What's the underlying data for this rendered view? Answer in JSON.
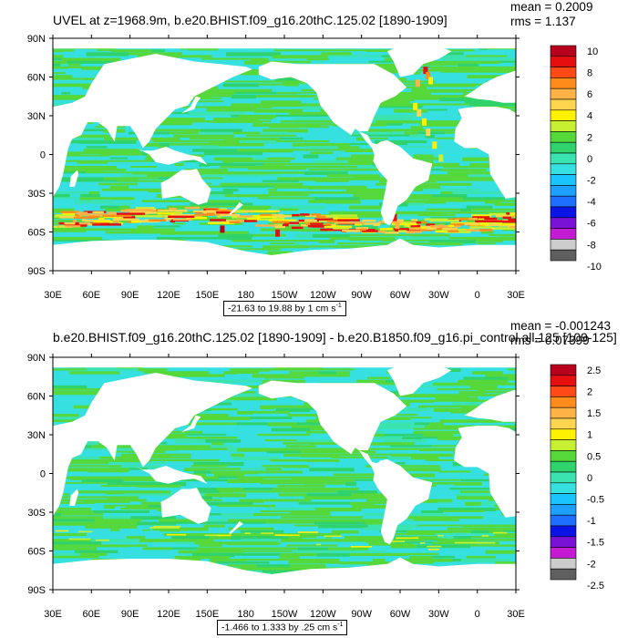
{
  "chart_data": [
    {
      "type": "heatmap",
      "title": "UVEL at z=1968.9m, b.e20.BHIST.f09_g16.20thC.125.02 [1890-1909]",
      "mean_label": "mean = 0.2009",
      "rms_label": "rms = 1.137",
      "range_text": "-21.63 to 19.88 by 1 cm s",
      "range_unit_exp": "-1",
      "x_ticks": [
        "30E",
        "60E",
        "90E",
        "120E",
        "150E",
        "180",
        "150W",
        "120W",
        "90W",
        "60W",
        "30W",
        "0",
        "30E"
      ],
      "y_ticks": [
        "90N",
        "60N",
        "30N",
        "0",
        "30S",
        "60S",
        "90S"
      ],
      "colorbar_labels": [
        "10",
        "8",
        "6",
        "4",
        "2",
        "0",
        "-2",
        "-4",
        "-6",
        "-8",
        "-10"
      ],
      "colorbar_colors": [
        "#b8001e",
        "#e60f0f",
        "#ff4a17",
        "#ff8c1a",
        "#ffb347",
        "#ffd54f",
        "#fff200",
        "#c8f032",
        "#56d83a",
        "#2fd26b",
        "#3be3b0",
        "#36e0e0",
        "#19c4ff",
        "#1ea0ff",
        "#1e6eff",
        "#0a14e6",
        "#7a12d6",
        "#c21bd2",
        "#cccccc",
        "#5f5f5f"
      ]
    },
    {
      "type": "heatmap",
      "title": "b.e20.BHIST.f09_g16.20thC.125.02 [1890-1909] - b.e20.B1850.f09_g16.pi_control.all.125 [109-125]",
      "mean_label": "mean = -0.001243",
      "rms_label": "rms = 0.07399",
      "range_text": "-1.466 to 1.333 by .25 cm s",
      "range_unit_exp": "-1",
      "x_ticks": [
        "30E",
        "60E",
        "90E",
        "120E",
        "150E",
        "180",
        "150W",
        "120W",
        "90W",
        "60W",
        "30W",
        "0",
        "30E"
      ],
      "y_ticks": [
        "90N",
        "60N",
        "30N",
        "0",
        "30S",
        "60S",
        "90S"
      ],
      "colorbar_labels": [
        "2.5",
        "2",
        "1.5",
        "1",
        "0.5",
        "0",
        "-0.5",
        "-1",
        "-1.5",
        "-2",
        "-2.5"
      ],
      "colorbar_colors": [
        "#b8001e",
        "#e60f0f",
        "#ff4a17",
        "#ff8c1a",
        "#ffb347",
        "#ffd54f",
        "#fff200",
        "#c8f032",
        "#56d83a",
        "#2fd26b",
        "#3be3b0",
        "#36e0e0",
        "#19c4ff",
        "#1ea0ff",
        "#1e6eff",
        "#0a14e6",
        "#7a12d6",
        "#c21bd2",
        "#cccccc",
        "#5f5f5f"
      ]
    }
  ]
}
